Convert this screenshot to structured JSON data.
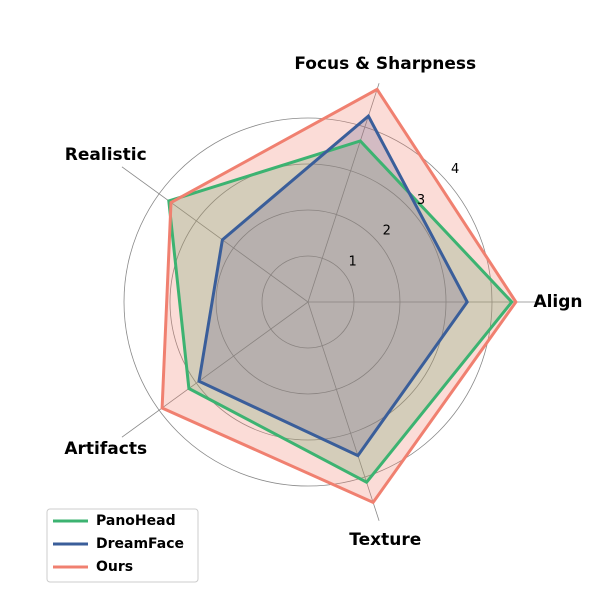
{
  "chart_data": {
    "type": "radar",
    "categories": [
      "Align",
      "Focus & Sharpness",
      "Realistic",
      "Artifacts",
      "Texture"
    ],
    "series": [
      {
        "name": "PanoHead",
        "color": "#3cb371",
        "values": [
          4.43,
          3.68,
          3.74,
          3.2,
          4.12
        ]
      },
      {
        "name": "DreamFace",
        "color": "#3a5e9a",
        "values": [
          3.46,
          4.25,
          2.3,
          2.93,
          3.51
        ]
      },
      {
        "name": "Ours",
        "color": "#f08070",
        "values": [
          4.52,
          4.86,
          3.68,
          3.92,
          4.58
        ]
      }
    ],
    "ylim": [
      0,
      5
    ],
    "yticks": [
      1,
      2,
      3,
      4
    ],
    "grid": true,
    "legend": "lower left"
  }
}
